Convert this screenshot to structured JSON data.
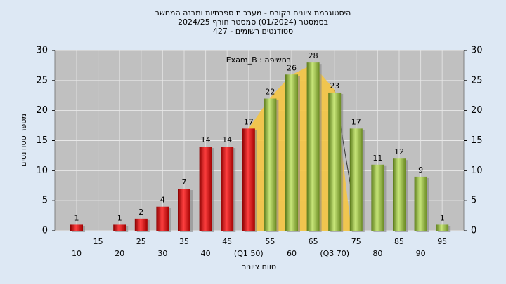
{
  "chart_data": {
    "type": "bar",
    "title": "היסטוגרמת ציונים בקורס - מערכות ספרתיות ומבנה המחשב",
    "subtitle": "בסמסטר (01/2024) סמסטר חורף 2024/25",
    "subtitle2": "סטודנטים רשומים - 427",
    "annotation": "בחשיפה : Exam_B",
    "xlabel": "טווח ציונים",
    "ylabel": "מספר סטודנטים",
    "categories": [
      "10",
      "15",
      "20",
      "25",
      "30",
      "35",
      "40",
      "45",
      "(Q1 50)",
      "55",
      "60",
      "65",
      "(Q3 70)",
      "75",
      "80",
      "85",
      "90",
      "95"
    ],
    "values": [
      1,
      0,
      1,
      2,
      4,
      7,
      14,
      14,
      17,
      22,
      26,
      28,
      23,
      17,
      11,
      12,
      9,
      1
    ],
    "value_labels": [
      "1",
      null,
      "1",
      "2",
      "4",
      "7",
      "14",
      "14",
      "17",
      "22",
      "26",
      "28",
      "23",
      "17",
      "11",
      "12",
      "9",
      "1"
    ],
    "colors": [
      "red",
      "red",
      "red",
      "red",
      "red",
      "red",
      "red",
      "red",
      "red",
      "green",
      "green",
      "green",
      "green",
      "green",
      "green",
      "green",
      "green",
      "green"
    ],
    "ylim": [
      0,
      30
    ],
    "yticks": [
      0,
      5,
      10,
      15,
      20,
      25,
      30
    ],
    "y2lim": [
      0,
      30
    ],
    "y2ticks": [
      0,
      5,
      10,
      15,
      20,
      25,
      30
    ],
    "grid": true
  }
}
